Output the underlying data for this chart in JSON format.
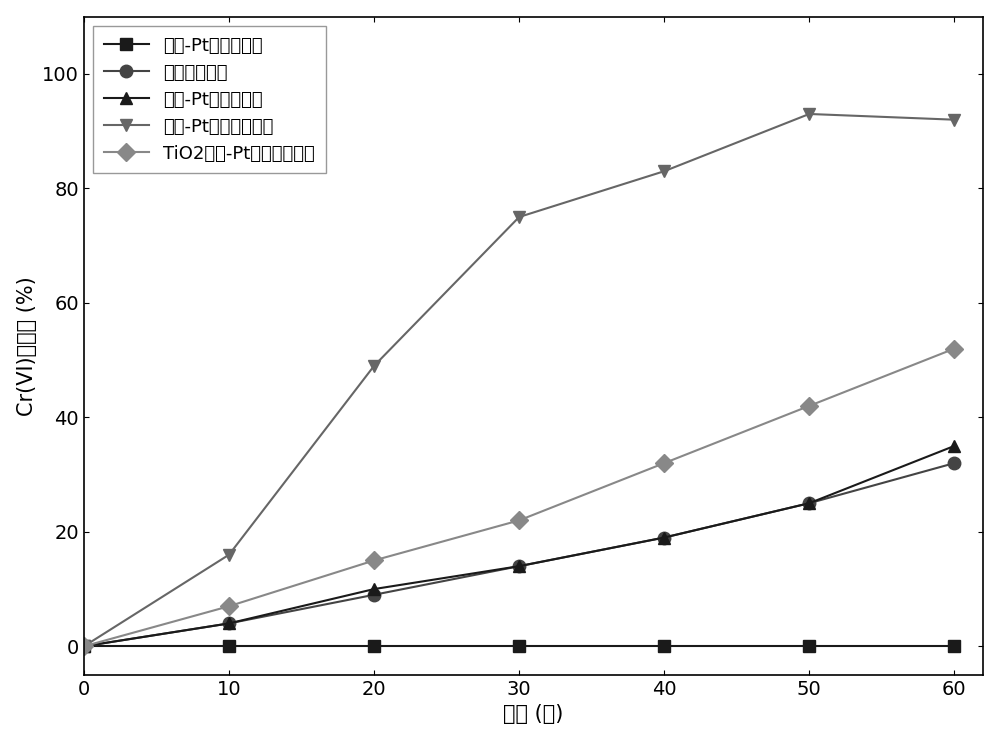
{
  "x": [
    0,
    10,
    20,
    30,
    40,
    50,
    60
  ],
  "series": [
    {
      "label": "钓网-Pt电极电弦化",
      "values": [
        0,
        0,
        0,
        0,
        0,
        0,
        0
      ],
      "color": "#1a1a1a",
      "marker": "s",
      "linestyle": "-"
    },
    {
      "label": "无弦化剂光解",
      "values": [
        0,
        4,
        9,
        14,
        19,
        25,
        32
      ],
      "color": "#444444",
      "marker": "o",
      "linestyle": "-"
    },
    {
      "label": "钓网-Pt电极光弦化",
      "values": [
        0,
        4,
        10,
        14,
        19,
        25,
        35
      ],
      "color": "#1a1a1a",
      "marker": "^",
      "linestyle": "-"
    },
    {
      "label": "钓网-Pt电极光电弦化",
      "values": [
        0,
        16,
        49,
        75,
        83,
        93,
        92
      ],
      "color": "#666666",
      "marker": "v",
      "linestyle": "-"
    },
    {
      "label": "TiO2薄膜-Pt电极光电弦化",
      "values": [
        0,
        7,
        15,
        22,
        32,
        42,
        52
      ],
      "color": "#888888",
      "marker": "D",
      "linestyle": "-"
    }
  ],
  "xlabel": "时间 (分)",
  "ylabel": "Cr(VI)转化率 (%)",
  "xlim": [
    0,
    62
  ],
  "ylim": [
    -5,
    110
  ],
  "xticks": [
    0,
    10,
    20,
    30,
    40,
    50,
    60
  ],
  "yticks": [
    0,
    20,
    40,
    60,
    80,
    100
  ],
  "legend_loc": "upper left",
  "markersize": 9,
  "linewidth": 1.5,
  "label_fontsize": 15,
  "tick_fontsize": 14,
  "legend_fontsize": 13,
  "background_color": "#ffffff"
}
